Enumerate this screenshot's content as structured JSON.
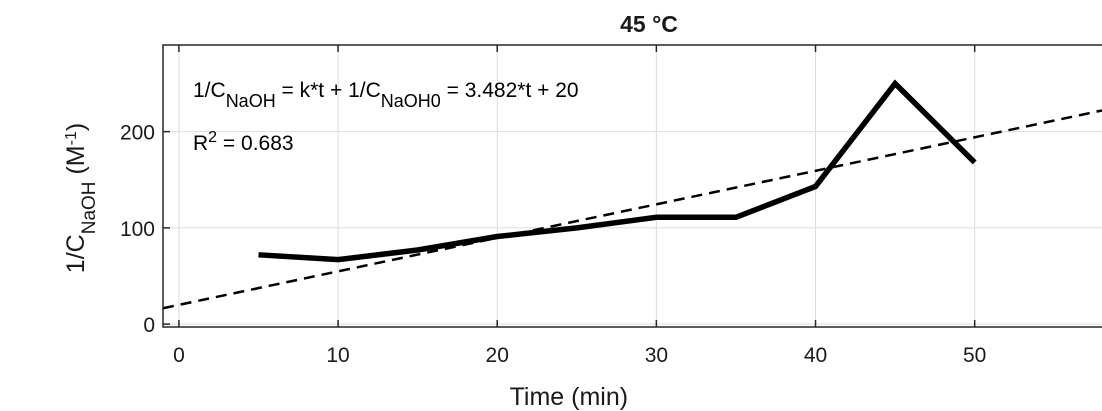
{
  "chart_data": {
    "type": "line",
    "title": "45 °C",
    "xlabel": "Time (min)",
    "ylabel": {
      "main": "1/C",
      "sub": "NaOH",
      "unit_open": " (M",
      "unit_sup": "-1",
      "unit_close": ")"
    },
    "xlim": [
      -1,
      58
    ],
    "ylim": [
      -3,
      290
    ],
    "xticks": [
      0,
      10,
      20,
      30,
      40,
      50
    ],
    "yticks": [
      0,
      100,
      200
    ],
    "grid": true,
    "series": [
      {
        "style": "solid",
        "color": "#000000",
        "x": [
          5,
          10,
          15,
          20,
          25,
          30,
          35,
          40,
          45,
          50
        ],
        "y": [
          72,
          67,
          77,
          91,
          100,
          111,
          111,
          143,
          250,
          168
        ]
      },
      {
        "style": "dashed",
        "color": "#000000",
        "fit": {
          "slope": 3.482,
          "intercept": 20
        }
      }
    ],
    "annotations": {
      "equation": {
        "t1": "1/C",
        "s1": "NaOH",
        "t2": " = k*t + 1/C",
        "s2": "NaOH0",
        "t3": " = 3.482*t + 20"
      },
      "r2": {
        "t1": "R",
        "sup": "2",
        "t2": " = 0.683"
      }
    }
  }
}
